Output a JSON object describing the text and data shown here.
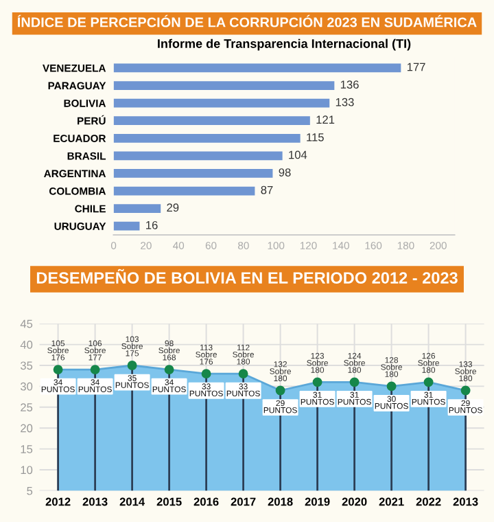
{
  "chart_data": [
    {
      "type": "bar",
      "orientation": "horizontal",
      "title": "ÍNDICE DE PERCEPCIÓN DE LA CORRUPCIÓN 2023 EN SUDAMÉRICA",
      "subtitle": "Informe de Transparencia Internacional (TI)",
      "categories": [
        "VENEZUELA",
        "PARAGUAY",
        "BOLIVIA",
        "PERÚ",
        "ECUADOR",
        "BRASIL",
        "ARGENTINA",
        "COLOMBIA",
        "CHILE",
        "URUGUAY"
      ],
      "values": [
        177,
        136,
        133,
        121,
        115,
        104,
        98,
        87,
        29,
        16
      ],
      "color": "#6f95d2",
      "data_labels": true,
      "xlim": [
        0,
        210
      ],
      "xticks": [
        0,
        20,
        40,
        60,
        80,
        100,
        120,
        140,
        160,
        180,
        200
      ],
      "grid": false
    },
    {
      "type": "area",
      "title": "DESEMPEÑO DE BOLIVIA EN EL PERIODO 2012 - 2023",
      "categories": [
        "2012",
        "2013",
        "2014",
        "2015",
        "2016",
        "2017",
        "2018",
        "2019",
        "2020",
        "2021",
        "2022",
        "2013"
      ],
      "series": [
        {
          "color": "#7ec4ec",
          "values": [
            34,
            34,
            35,
            34,
            33,
            33,
            29,
            31,
            31,
            30,
            31,
            29
          ],
          "value_labels": [
            "34\nPUNTOS",
            "34\nPUNTOS",
            "35\nPUNTOS",
            "34\nPUNTOS",
            "33\nPUNTOS",
            "33\nPUNTOS",
            "29\nPUNTOS",
            "31\nPUNTOS",
            "31\nPUNTOS",
            "30\nPUNTOS",
            "31\nPUNTOS",
            "29\nPUNTOS"
          ]
        }
      ],
      "marker": "circle",
      "annotations": [
        {
          "text": "105\nSobre\n176",
          "x": "2012",
          "y": 34
        },
        {
          "text": "106\nSobre\n177",
          "x": "2013",
          "y": 34
        },
        {
          "text": "103\nSobre\n175",
          "x": "2014",
          "y": 35
        },
        {
          "text": "98\nSobre\n168",
          "x": "2015",
          "y": 34
        },
        {
          "text": "113\nSobre\n176",
          "x": "2016",
          "y": 33
        },
        {
          "text": "112\nSobre\n180",
          "x": "2017",
          "y": 33
        },
        {
          "text": "132\nSobre\n180",
          "x": "2018",
          "y": 29
        },
        {
          "text": "123\nSobre\n180",
          "x": "2019",
          "y": 31
        },
        {
          "text": "124\nSobre\n180",
          "x": "2020",
          "y": 31
        },
        {
          "text": "128\nSobre\n180",
          "x": "2021",
          "y": 30
        },
        {
          "text": "126\nSobre\n180",
          "x": "2022",
          "y": 31
        },
        {
          "text": "133\nSobre\n180",
          "y": 29
        }
      ],
      "ylim": [
        5,
        45
      ],
      "yticks": [
        5,
        10,
        15,
        20,
        25,
        30,
        35,
        40,
        45
      ],
      "grid": true
    }
  ]
}
